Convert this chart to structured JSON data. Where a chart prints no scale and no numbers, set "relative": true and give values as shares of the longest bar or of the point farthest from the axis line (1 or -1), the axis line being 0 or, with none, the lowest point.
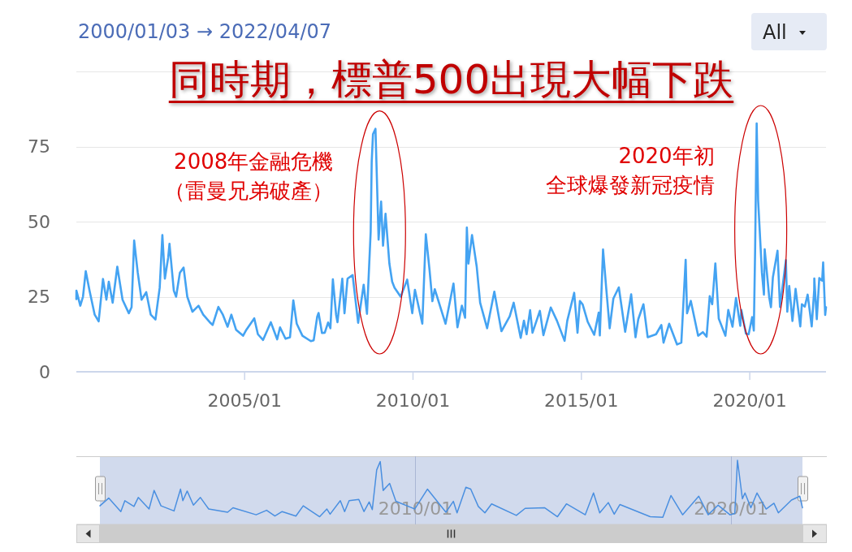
{
  "chart_data": [
    {
      "type": "line",
      "title": "同時期，標普500出現大幅下跌",
      "subtitle": "2000/01/03 → 2022/04/07",
      "x": [
        "2000-01-03",
        "2000-01-04",
        "2000-02-15",
        "2000-03-15",
        "2000-04-14",
        "2000-05-25",
        "2000-07-20",
        "2000-09-01",
        "2000-10-18",
        "2000-11-24",
        "2000-12-20",
        "2001-01-31",
        "2001-03-22",
        "2001-05-18",
        "2001-07-25",
        "2001-08-24",
        "2001-09-21",
        "2001-10-30",
        "2001-12-10",
        "2002-01-30",
        "2002-03-20",
        "2002-05-10",
        "2002-06-25",
        "2002-07-24",
        "2002-08-20",
        "2002-09-25",
        "2002-10-09",
        "2002-11-25",
        "2002-12-20",
        "2003-01-30",
        "2003-03-11",
        "2003-04-20",
        "2003-06-15",
        "2003-08-20",
        "2003-10-10",
        "2003-12-20",
        "2004-01-20",
        "2004-03-22",
        "2004-05-10",
        "2004-06-30",
        "2004-08-10",
        "2004-09-30",
        "2004-12-15",
        "2005-01-20",
        "2005-04-15",
        "2005-05-25",
        "2005-07-20",
        "2005-10-12",
        "2005-12-20",
        "2006-01-20",
        "2006-03-20",
        "2006-05-08",
        "2006-06-13",
        "2006-07-20",
        "2006-09-20",
        "2006-12-20",
        "2007-01-20",
        "2007-02-27",
        "2007-03-14",
        "2007-04-20",
        "2007-05-20",
        "2007-06-25",
        "2007-07-20",
        "2007-08-16",
        "2007-09-20",
        "2007-10-05",
        "2007-11-26",
        "2007-12-20",
        "2008-01-22",
        "2008-03-17",
        "2008-05-16",
        "2008-07-15",
        "2008-08-20",
        "2008-09-29",
        "2008-10-10",
        "2008-10-24",
        "2008-11-20",
        "2008-12-02",
        "2008-12-24",
        "2009-01-20",
        "2009-02-10",
        "2009-03-09",
        "2009-04-20",
        "2009-05-20",
        "2009-06-15",
        "2009-08-20",
        "2009-10-30",
        "2009-12-24",
        "2010-01-22",
        "2010-04-12",
        "2010-05-20",
        "2010-06-29",
        "2010-07-30",
        "2010-08-25",
        "2010-12-20",
        "2011-03-16",
        "2011-04-28",
        "2011-06-15",
        "2011-07-20",
        "2011-08-08",
        "2011-08-25",
        "2011-10-03",
        "2011-11-23",
        "2011-12-30",
        "2012-03-15",
        "2012-06-01",
        "2012-08-17",
        "2012-11-15",
        "2012-12-28",
        "2013-03-14",
        "2013-04-18",
        "2013-05-17",
        "2013-06-24",
        "2013-07-20",
        "2013-10-08",
        "2013-11-15",
        "2014-02-03",
        "2014-04-11",
        "2014-07-03",
        "2014-08-01",
        "2014-10-15",
        "2014-11-20",
        "2014-12-16",
        "2015-01-15",
        "2015-03-10",
        "2015-05-20",
        "2015-07-08",
        "2015-07-20",
        "2015-08-24",
        "2015-09-28",
        "2015-11-04",
        "2015-12-14",
        "2016-02-11",
        "2016-04-20",
        "2016-06-24",
        "2016-08-10",
        "2016-09-09",
        "2016-11-04",
        "2016-12-20",
        "2017-03-21",
        "2017-05-17",
        "2017-06-10",
        "2017-08-10",
        "2017-11-03",
        "2017-12-20",
        "2018-02-05",
        "2018-02-20",
        "2018-04-02",
        "2018-06-20",
        "2018-08-10",
        "2018-09-20",
        "2018-10-24",
        "2018-11-20",
        "2018-12-24",
        "2019-01-30",
        "2019-04-12",
        "2019-05-13",
        "2019-06-28",
        "2019-08-05",
        "2019-09-20",
        "2019-10-02",
        "2019-11-20",
        "2019-12-20",
        "2020-01-27",
        "2020-02-14",
        "2020-02-28",
        "2020-03-16",
        "2020-04-01",
        "2020-05-12",
        "2020-06-03",
        "2020-06-11",
        "2020-07-30",
        "2020-08-18",
        "2020-09-08",
        "2020-10-28",
        "2020-11-24",
        "2021-01-27",
        "2021-02-11",
        "2021-03-04",
        "2021-04-08",
        "2021-05-12",
        "2021-07-02",
        "2021-07-19",
        "2021-08-20",
        "2021-09-20",
        "2021-11-03",
        "2021-11-30",
        "2021-12-01",
        "2021-12-28",
        "2022-01-24",
        "2022-02-24",
        "2022-03-07",
        "2022-03-29",
        "2022-04-07"
      ],
      "series": [
        {
          "color": "#44a3f2",
          "values": [
            24.2,
            27,
            22,
            25,
            33.5,
            27,
            19,
            16.8,
            30.9,
            24,
            30,
            23,
            35,
            24,
            19.5,
            21.5,
            43.7,
            33,
            24,
            26.5,
            19,
            17.4,
            28,
            45.5,
            31,
            38,
            42.6,
            27,
            25,
            33,
            34.7,
            25,
            20,
            22,
            19,
            16.5,
            15.6,
            21.6,
            19,
            15,
            19,
            14,
            12,
            14,
            17.8,
            12.5,
            10.6,
            16.5,
            10.8,
            14.8,
            11,
            11.5,
            23.8,
            16,
            12,
            10.2,
            10.5,
            18.3,
            19.6,
            12.9,
            13,
            16.4,
            14.5,
            30.8,
            19,
            16.5,
            31,
            19.5,
            31,
            32.2,
            16.3,
            29,
            19.3,
            46.7,
            69.9,
            79.1,
            80.9,
            68,
            44,
            56.7,
            42,
            52.6,
            36,
            30,
            28,
            25,
            30.7,
            19.5,
            27.3,
            16,
            45.8,
            34,
            23.5,
            27.5,
            16,
            29.4,
            14.8,
            22,
            18,
            48,
            36,
            45.5,
            35,
            23,
            14.5,
            26.7,
            13.5,
            18.5,
            23,
            11.3,
            17,
            12.5,
            20.5,
            13,
            20.3,
            12.2,
            21.4,
            17,
            10.3,
            17,
            26.3,
            13,
            23.6,
            22.4,
            16.7,
            12.3,
            19.7,
            12.1,
            40.7,
            27.6,
            14.5,
            24.4,
            28.1,
            13.3,
            25.8,
            11.5,
            17.5,
            22.5,
            11.5,
            12.5,
            15.6,
            9.7,
            16,
            9.1,
            9.7,
            37.3,
            19.5,
            23.6,
            12,
            13.2,
            11.7,
            25.2,
            22.5,
            36.1,
            17.7,
            12,
            20.6,
            15,
            24.6,
            15.3,
            20.6,
            12.7,
            12.5,
            18.2,
            13.7,
            40.1,
            82.7,
            57,
            33,
            25.7,
            40.8,
            24.8,
            21.5,
            31.5,
            40.3,
            21.6,
            37.2,
            20,
            28.6,
            16.9,
            27.6,
            15.1,
            22.5,
            21.7,
            25.7,
            15.1,
            27.2,
            31.1,
            17.5,
            31.2,
            30.3,
            36.4,
            18.9,
            21.5
          ]
        }
      ],
      "xlim": [
        "2000-01-03",
        "2022-04-07"
      ],
      "ylim": [
        0,
        100
      ],
      "xticks": [
        {
          "value": "2005-01-01",
          "label": "2005/01"
        },
        {
          "value": "2010-01-01",
          "label": "2010/01"
        },
        {
          "value": "2015-01-01",
          "label": "2015/01"
        },
        {
          "value": "2020-01-01",
          "label": "2020/01"
        }
      ],
      "yticks": [
        0,
        25,
        50,
        75,
        {
          "value": 100,
          "label": null
        }
      ],
      "grid": "y",
      "annotations": [
        "All",
        {
          "text": "2008年金融危機",
          "x": "2008-11-20",
          "y": 80.9
        },
        "（雷曼兄弟破產）",
        {
          "text": "2020年初",
          "x": "2020-03-16",
          "y": 82.7
        },
        "全球爆發新冠疫情"
      ]
    },
    {
      "type": "line",
      "relative": true,
      "x": [
        "2000-01-03",
        "2000-04-14",
        "2000-09-01",
        "2000-10-18",
        "2001-01-31",
        "2001-03-22",
        "2001-07-25",
        "2001-09-21",
        "2001-12-10",
        "2002-05-10",
        "2002-07-24",
        "2002-08-20",
        "2002-10-09",
        "2002-12-20",
        "2003-03-11",
        "2003-06-15",
        "2004-01-20",
        "2004-03-22",
        "2004-12-15",
        "2005-04-15",
        "2005-07-20",
        "2005-10-12",
        "2006-03-20",
        "2006-06-13",
        "2006-12-20",
        "2007-03-14",
        "2007-04-20",
        "2007-08-16",
        "2007-10-05",
        "2007-11-26",
        "2008-03-17",
        "2008-05-16",
        "2008-07-15",
        "2008-08-20",
        "2008-10-10",
        "2008-11-20",
        "2008-12-24",
        "2009-03-09",
        "2009-05-20",
        "2009-12-24",
        "2010-05-20",
        "2010-12-20",
        "2011-03-16",
        "2011-04-28",
        "2011-08-08",
        "2011-10-03",
        "2011-12-30",
        "2012-03-15",
        "2012-06-01",
        "2013-03-14",
        "2013-06-24",
        "2014-02-03",
        "2014-07-03",
        "2014-10-15",
        "2015-05-20",
        "2015-08-24",
        "2015-11-04",
        "2016-02-11",
        "2016-04-20",
        "2016-06-24",
        "2017-06-10",
        "2017-11-03",
        "2018-02-05",
        "2018-06-20",
        "2018-12-24",
        "2019-04-12",
        "2019-08-05",
        "2019-12-20",
        "2020-02-14",
        "2020-03-16",
        "2020-05-12",
        "2020-06-11",
        "2020-08-18",
        "2020-10-28",
        "2021-02-11",
        "2021-05-12",
        "2021-07-02",
        "2021-12-01",
        "2022-03-07",
        "2022-04-07"
      ],
      "series": [
        {
          "color": "#4a8fe0",
          "values": [
            0.29,
            0.41,
            0.2,
            0.37,
            0.28,
            0.42,
            0.24,
            0.53,
            0.29,
            0.21,
            0.55,
            0.37,
            0.52,
            0.3,
            0.42,
            0.24,
            0.19,
            0.26,
            0.15,
            0.22,
            0.13,
            0.2,
            0.13,
            0.29,
            0.12,
            0.24,
            0.16,
            0.37,
            0.2,
            0.37,
            0.39,
            0.2,
            0.35,
            0.23,
            0.85,
            0.98,
            0.53,
            0.64,
            0.36,
            0.24,
            0.55,
            0.19,
            0.36,
            0.18,
            0.58,
            0.55,
            0.28,
            0.18,
            0.32,
            0.14,
            0.25,
            0.26,
            0.12,
            0.32,
            0.15,
            0.49,
            0.18,
            0.34,
            0.16,
            0.31,
            0.12,
            0.11,
            0.45,
            0.15,
            0.44,
            0.15,
            0.3,
            0.15,
            0.17,
            1,
            0.4,
            0.49,
            0.26,
            0.49,
            0.24,
            0.33,
            0.18,
            0.38,
            0.44,
            0.26
          ]
        }
      ],
      "xlim": [
        "2000-01-03",
        "2022-04-07"
      ],
      "xticks": [
        {
          "value": "2010-01-01",
          "label": "2010/01"
        },
        {
          "value": "2020-01-01",
          "label": "2020/01"
        }
      ],
      "grid": "x"
    }
  ]
}
